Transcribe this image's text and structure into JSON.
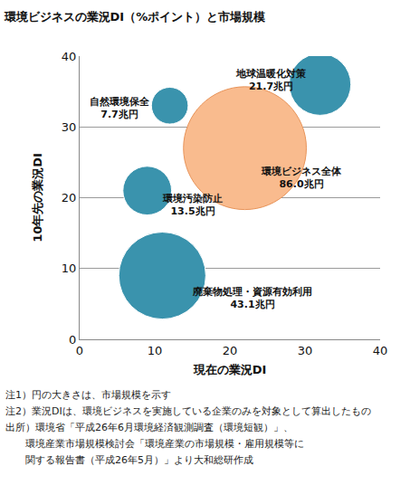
{
  "chart_data": {
    "type": "scatter",
    "marker": "bubble",
    "title": "環境ビジネスの業況DI（%ポイント）と市場規模",
    "x_label": "現在の業況DI",
    "y_label": "10年先の業況DI",
    "labels": [
      "地球温暖化対策",
      "自然環境保全",
      "環境ビジネス全体",
      "環境汚染防止",
      "廃棄物処理・資源有効利用"
    ],
    "x": [
      32,
      12,
      22,
      9,
      11
    ],
    "values": [
      36,
      33,
      27,
      21,
      9
    ],
    "sizes": [
      21.7,
      7.7,
      86.0,
      13.5,
      43.1
    ],
    "size_labels": [
      "21.7兆円",
      "7.7兆円",
      "86.0兆円",
      "13.5兆円",
      "43.1兆円"
    ],
    "colors": [
      "#3a93ad",
      "#3a93ad",
      "#f9bb8e",
      "#3a93ad",
      "#3a93ad"
    ],
    "data_labels": true,
    "xlim": [
      0,
      40
    ],
    "xticks": [
      0,
      10,
      20,
      30,
      40
    ],
    "ylim": [
      0,
      40
    ],
    "yticks": [
      0,
      10,
      20,
      30,
      40
    ],
    "grid": true,
    "notes": [
      "注1）円の大きさは、市場規模を示す",
      "注2）業況DIは、環境ビジネスを実施している企業のみを対象として算出したもの",
      "出所）環境省「平成26年6月環境経済観測調査（環境短観）」、",
      "　　環境産業市場規模検討会「環境産業の市場規模・雇用規模等に",
      "　　関する報告書（平成26年5月）」より大和総研作成"
    ]
  }
}
